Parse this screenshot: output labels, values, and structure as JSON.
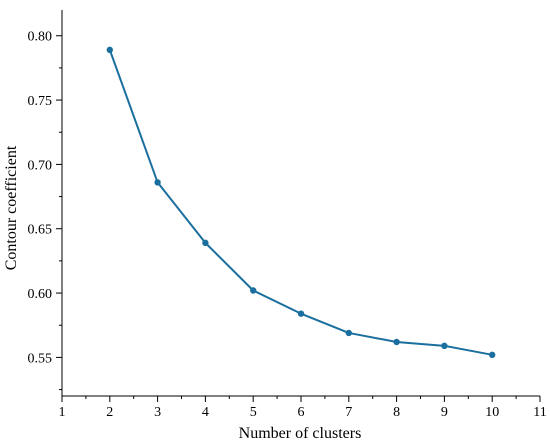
{
  "chart_data": {
    "type": "line",
    "title": "",
    "xlabel": "Number of clusters",
    "ylabel": "Contour coefficient",
    "xlim": [
      1,
      11
    ],
    "ylim": [
      0.52,
      0.82
    ],
    "x_ticks": [
      "1",
      "2",
      "3",
      "4",
      "5",
      "6",
      "7",
      "8",
      "9",
      "10",
      "11"
    ],
    "y_ticks": [
      "0.55",
      "0.60",
      "0.65",
      "0.70",
      "0.75",
      "0.80"
    ],
    "grid": false,
    "legend": "none",
    "series": [
      {
        "color": "#1a6f9e",
        "x": [
          2,
          3,
          4,
          5,
          6,
          7,
          8,
          9,
          10
        ],
        "y": [
          0.789,
          0.686,
          0.639,
          0.602,
          0.584,
          0.569,
          0.562,
          0.559,
          0.552
        ]
      }
    ]
  }
}
